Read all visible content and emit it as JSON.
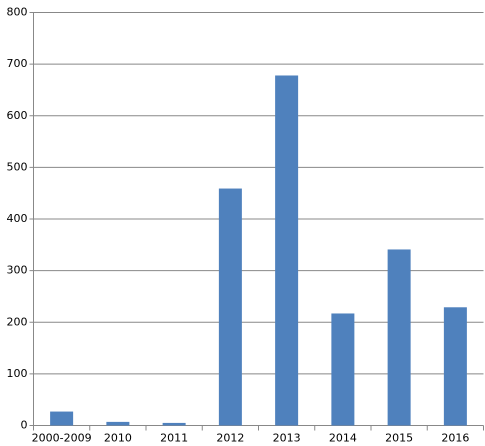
{
  "chart_data": {
    "type": "bar",
    "categories": [
      "2000-2009",
      "2010",
      "2011",
      "2012",
      "2013",
      "2014",
      "2015",
      "2016"
    ],
    "values": [
      27,
      7,
      5,
      459,
      678,
      217,
      341,
      229
    ],
    "color": "#4f81bd",
    "ylim": [
      0,
      800
    ],
    "yticks": [
      0,
      100,
      200,
      300,
      400,
      500,
      600,
      700,
      800
    ],
    "grid": true
  }
}
